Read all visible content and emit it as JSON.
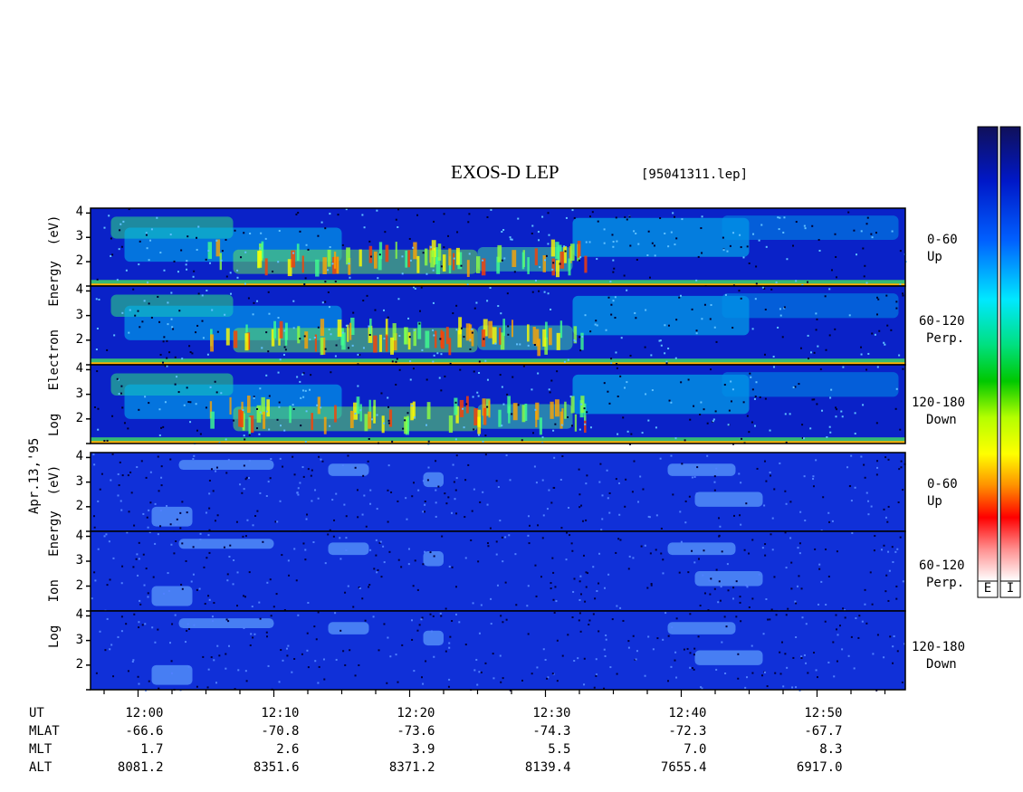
{
  "title": "EXOS-D LEP",
  "file_label": "[95041311.lep]",
  "date_label": "Apr.13,'95",
  "electron_ylabel": {
    "log": "Log",
    "species": "Electron",
    "energy": "Energy",
    "unit": "(eV)"
  },
  "ion_ylabel": {
    "log": "Log",
    "species": "Ion",
    "energy": "Energy",
    "unit": "(eV)"
  },
  "panels": [
    {
      "line1": "0-60",
      "line2": "Up"
    },
    {
      "line1": "60-120",
      "line2": "Perp."
    },
    {
      "line1": "120-180",
      "line2": "Down"
    },
    {
      "line1": "0-60",
      "line2": "Up"
    },
    {
      "line1": "60-120",
      "line2": "Perp."
    },
    {
      "line1": "120-180",
      "line2": "Down"
    }
  ],
  "colorbar": {
    "left_letter": "E",
    "right_letter": "I"
  },
  "ephemeris": {
    "labels": [
      "UT",
      "MLAT",
      "MLT",
      "ALT"
    ],
    "columns": [
      {
        "UT": "12:00",
        "MLAT": "-66.6",
        "MLT": "1.7",
        "ALT": "8081.2"
      },
      {
        "UT": "12:10",
        "MLAT": "-70.8",
        "MLT": "2.6",
        "ALT": "8351.6"
      },
      {
        "UT": "12:20",
        "MLAT": "-73.6",
        "MLT": "3.9",
        "ALT": "8371.2"
      },
      {
        "UT": "12:30",
        "MLAT": "-74.3",
        "MLT": "5.5",
        "ALT": "8139.4"
      },
      {
        "UT": "12:40",
        "MLAT": "-72.3",
        "MLT": "7.0",
        "ALT": "7655.4"
      },
      {
        "UT": "12:50",
        "MLAT": "-67.7",
        "MLT": "8.3",
        "ALT": "6917.0"
      }
    ]
  },
  "chart_data": {
    "type": "heatmap",
    "title": "EXOS-D LEP",
    "x_axis": {
      "label": "UT",
      "ticks": [
        "12:00",
        "12:10",
        "12:20",
        "12:30",
        "12:40",
        "12:50"
      ],
      "range_minutes": [
        11.5,
        71.5
      ],
      "tick_minutes": [
        15,
        25,
        35,
        45,
        55,
        65
      ]
    },
    "y_axis": {
      "label": "Log Energy (eV)",
      "scale": "log10",
      "range": [
        1,
        4.2
      ],
      "ticks": [
        "1",
        "2",
        "3",
        "4"
      ]
    },
    "series": [
      {
        "name": "Log Electron Energy (eV) 0-60 Up",
        "y_ticks": [
          "2",
          "3",
          "4"
        ]
      },
      {
        "name": "Log Electron Energy (eV) 60-120 Perp.",
        "y_ticks": [
          "2",
          "3",
          "4"
        ]
      },
      {
        "name": "Log Electron Energy (eV) 120-180 Down",
        "y_ticks": [
          "2",
          "3",
          "4"
        ]
      },
      {
        "name": "Log Ion Energy (eV) 0-60 Up",
        "y_ticks": [
          "2",
          "3",
          "4"
        ]
      },
      {
        "name": "Log Ion Energy (eV) 60-120 Perp.",
        "y_ticks": [
          "2",
          "3",
          "4"
        ]
      },
      {
        "name": "Log Ion Energy (eV) 120-180 Down",
        "y_ticks": [
          "2",
          "3",
          "4"
        ]
      }
    ],
    "colormap": [
      "#ffffff",
      "#ff0000",
      "#ffa500",
      "#ffff00",
      "#00cc00",
      "#00ffff",
      "#0040ff",
      "#000080"
    ],
    "grid": false
  }
}
